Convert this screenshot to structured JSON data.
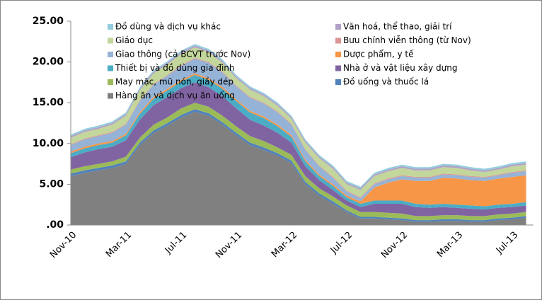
{
  "chart_data": {
    "type": "stacked_area",
    "categories": [
      "Nov-10",
      null,
      null,
      null,
      "Mar-11",
      null,
      null,
      null,
      "Jul-11",
      null,
      null,
      null,
      "Nov-11",
      null,
      null,
      null,
      "Mar-12",
      null,
      null,
      null,
      "Jul-12",
      null,
      null,
      null,
      "Nov-12",
      null,
      null,
      null,
      "Mar-13",
      null,
      null,
      null,
      "Jul-13",
      null
    ],
    "ylim": [
      0,
      25
    ],
    "yticks": [
      {
        "value": 0,
        "label": ".00"
      },
      {
        "value": 5,
        "label": "5.00"
      },
      {
        "value": 10,
        "label": "10.00"
      },
      {
        "value": 15,
        "label": "15.00"
      },
      {
        "value": 20,
        "label": "20.00"
      },
      {
        "value": 25,
        "label": "25.00"
      }
    ],
    "series": [
      {
        "name": "Hàng ăn và dịch vụ ăn uống",
        "color": "#808080",
        "values": [
          6.0,
          6.4,
          6.7,
          7.0,
          7.5,
          9.8,
          11.3,
          12.2,
          13.2,
          13.9,
          13.4,
          12.3,
          11.0,
          9.8,
          9.2,
          8.5,
          7.6,
          5.0,
          3.6,
          2.6,
          1.6,
          0.8,
          0.8,
          0.7,
          0.6,
          0.4,
          0.4,
          0.5,
          0.5,
          0.4,
          0.4,
          0.6,
          0.7,
          0.9
        ]
      },
      {
        "name": "Đồ uống và thuốc lá",
        "color": "#4f81bd",
        "values": [
          0.3,
          0.3,
          0.3,
          0.3,
          0.3,
          0.3,
          0.3,
          0.3,
          0.3,
          0.3,
          0.3,
          0.3,
          0.3,
          0.3,
          0.3,
          0.3,
          0.3,
          0.3,
          0.3,
          0.3,
          0.2,
          0.2,
          0.2,
          0.2,
          0.2,
          0.2,
          0.2,
          0.2,
          0.2,
          0.2,
          0.2,
          0.2,
          0.2,
          0.2
        ]
      },
      {
        "name": "May mặc, mũ nón, giầy dép",
        "color": "#9bbb59",
        "values": [
          0.5,
          0.5,
          0.5,
          0.5,
          0.6,
          0.6,
          0.7,
          0.7,
          0.8,
          0.8,
          0.8,
          0.8,
          0.8,
          0.8,
          0.8,
          0.7,
          0.7,
          0.7,
          0.6,
          0.6,
          0.6,
          0.6,
          0.6,
          0.6,
          0.6,
          0.5,
          0.5,
          0.5,
          0.5,
          0.5,
          0.5,
          0.5,
          0.5,
          0.5
        ]
      },
      {
        "name": "Nhà ở và vật liệu xây dựng",
        "color": "#8064a2",
        "values": [
          1.5,
          1.7,
          1.8,
          1.8,
          2.0,
          2.2,
          2.4,
          2.5,
          2.5,
          2.5,
          2.4,
          2.4,
          2.2,
          2.0,
          1.9,
          1.8,
          1.5,
          1.2,
          1.0,
          0.8,
          0.6,
          0.6,
          1.0,
          1.1,
          1.2,
          1.1,
          1.0,
          1.0,
          0.9,
          0.9,
          0.8,
          0.8,
          0.8,
          0.8
        ]
      },
      {
        "name": "Thiết bị và đồ dùng gia đình",
        "color": "#4bacc6",
        "values": [
          0.5,
          0.5,
          0.5,
          0.5,
          0.6,
          0.7,
          0.8,
          0.8,
          0.8,
          0.9,
          0.9,
          0.9,
          0.9,
          0.9,
          0.9,
          0.8,
          0.7,
          0.6,
          0.5,
          0.5,
          0.4,
          0.4,
          0.4,
          0.4,
          0.4,
          0.4,
          0.4,
          0.4,
          0.4,
          0.4,
          0.4,
          0.4,
          0.4,
          0.4
        ]
      },
      {
        "name": "Dược phẩm, y tế",
        "color": "#f79646",
        "values": [
          0.2,
          0.2,
          0.2,
          0.2,
          0.2,
          0.2,
          0.2,
          0.2,
          0.2,
          0.2,
          0.2,
          0.2,
          0.2,
          0.2,
          0.2,
          0.2,
          0.2,
          0.2,
          0.2,
          0.2,
          0.2,
          0.3,
          1.6,
          2.2,
          2.6,
          2.8,
          2.9,
          3.2,
          3.2,
          3.1,
          3.1,
          3.2,
          3.3,
          3.3
        ]
      },
      {
        "name": "Giao thông (cả BCVT trước Nov)",
        "color": "#95b3d7",
        "values": [
          0.8,
          0.9,
          0.9,
          1.0,
          1.1,
          1.4,
          1.5,
          1.6,
          1.7,
          1.8,
          1.9,
          1.8,
          1.6,
          1.6,
          1.6,
          1.5,
          1.3,
          1.2,
          1.0,
          0.8,
          0.5,
          0.4,
          0.4,
          0.4,
          0.4,
          0.4,
          0.4,
          0.4,
          0.4,
          0.4,
          0.4,
          0.4,
          0.5,
          0.5
        ]
      },
      {
        "name": "Bưu chính viễn thông (từ Nov)",
        "color": "#d99694",
        "values": [
          0.1,
          0.1,
          0.1,
          0.1,
          0.1,
          0.1,
          0.1,
          0.1,
          0.1,
          0.1,
          0.1,
          0.1,
          0.1,
          0.1,
          0.1,
          0.1,
          0.1,
          0.1,
          0.1,
          0.1,
          0.1,
          0.1,
          0.1,
          0.1,
          0.1,
          0.1,
          0.1,
          0.1,
          0.1,
          0.1,
          0.1,
          0.1,
          0.1,
          0.1
        ]
      },
      {
        "name": "Giáo dục",
        "color": "#c3d69b",
        "values": [
          0.8,
          0.8,
          0.8,
          0.9,
          1.0,
          1.2,
          1.3,
          1.3,
          1.4,
          1.3,
          1.2,
          1.1,
          0.9,
          0.9,
          0.8,
          0.7,
          0.6,
          0.8,
          0.9,
          1.0,
          0.8,
          0.9,
          0.9,
          0.9,
          0.9,
          0.8,
          0.8,
          0.8,
          0.8,
          0.7,
          0.6,
          0.6,
          0.7,
          0.7
        ]
      },
      {
        "name": "Văn hoá, thể thao, giải trí",
        "color": "#b2a1c7",
        "values": [
          0.2,
          0.2,
          0.2,
          0.2,
          0.2,
          0.2,
          0.2,
          0.2,
          0.2,
          0.2,
          0.2,
          0.2,
          0.2,
          0.2,
          0.2,
          0.2,
          0.2,
          0.2,
          0.2,
          0.2,
          0.2,
          0.2,
          0.2,
          0.2,
          0.2,
          0.2,
          0.2,
          0.2,
          0.2,
          0.2,
          0.2,
          0.2,
          0.2,
          0.2
        ]
      },
      {
        "name": "Đồ dùng và dịch vụ khác",
        "color": "#93cddd",
        "values": [
          0.2,
          0.2,
          0.2,
          0.2,
          0.2,
          0.2,
          0.2,
          0.2,
          0.2,
          0.2,
          0.2,
          0.2,
          0.2,
          0.2,
          0.2,
          0.2,
          0.2,
          0.2,
          0.2,
          0.2,
          0.2,
          0.2,
          0.2,
          0.2,
          0.2,
          0.2,
          0.2,
          0.2,
          0.2,
          0.2,
          0.2,
          0.2,
          0.2,
          0.2
        ]
      }
    ]
  }
}
